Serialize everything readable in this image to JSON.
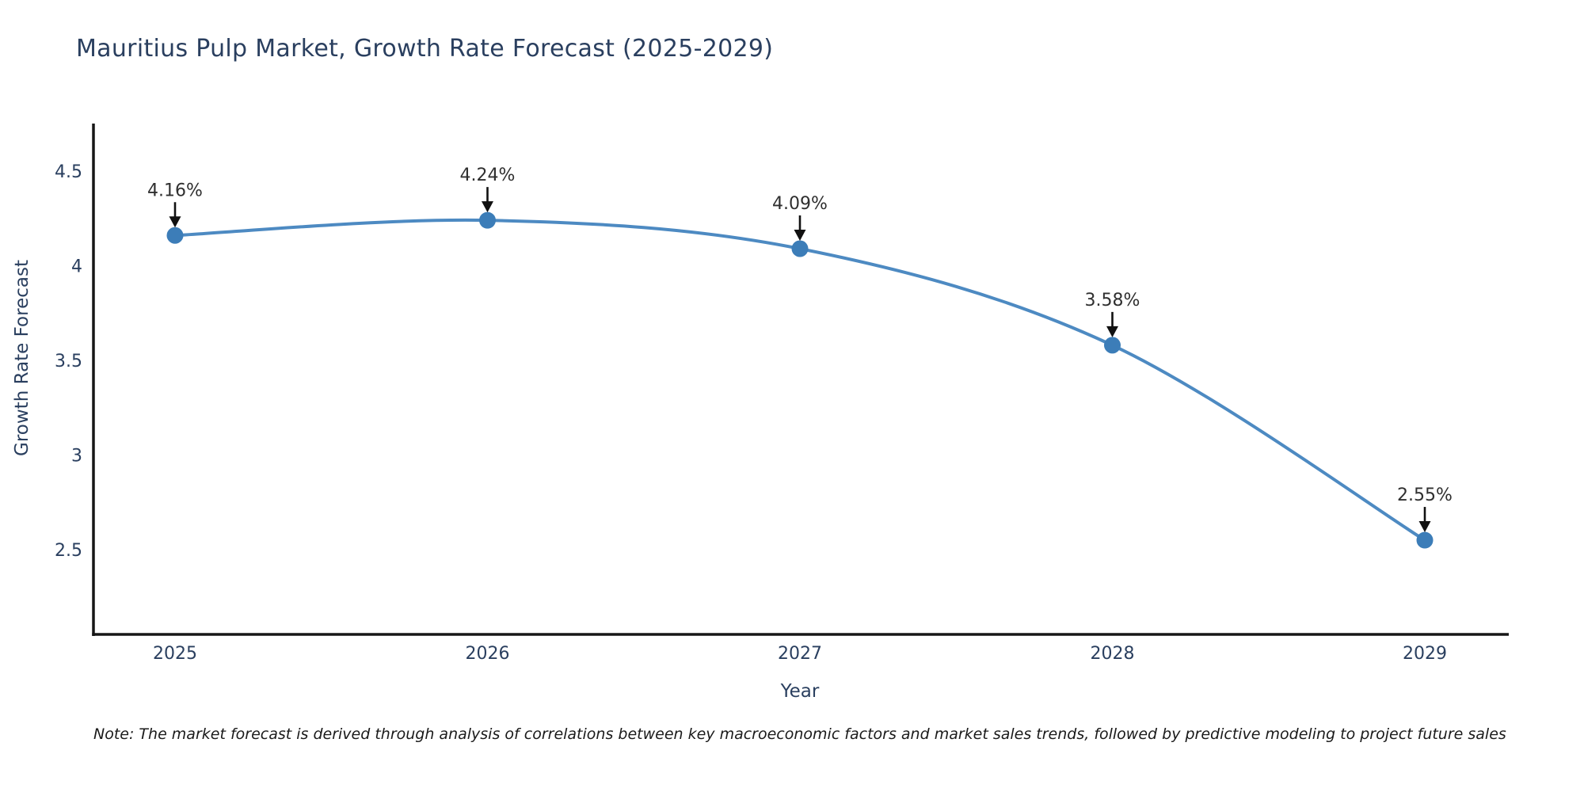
{
  "title": "Mauritius Pulp Market, Growth Rate Forecast (2025-2029)",
  "note": "Note: The market forecast is derived through analysis of correlations between key macroeconomic factors and market sales trends, followed by predictive modeling to project future sales",
  "chart_data": {
    "type": "line",
    "title": "Mauritius Pulp Market, Growth Rate Forecast (2025-2029)",
    "xlabel": "Year",
    "ylabel": "Growth Rate Forecast",
    "x": [
      2025,
      2026,
      2027,
      2028,
      2029
    ],
    "series": [
      {
        "name": "Growth Rate Forecast",
        "values": [
          4.16,
          4.24,
          4.09,
          3.58,
          2.55
        ]
      }
    ],
    "point_labels": [
      "4.16%",
      "4.24%",
      "4.09%",
      "3.58%",
      "2.55%"
    ],
    "xticks": [
      "2025",
      "2026",
      "2027",
      "2028",
      "2029"
    ],
    "yticks": [
      2.5,
      3,
      3.5,
      4,
      4.5
    ],
    "ytick_labels": [
      "2.5",
      "3",
      "3.5",
      "4",
      "4.5"
    ],
    "ylim": [
      2.04,
      4.74
    ],
    "line_shape": "spline",
    "grid": false,
    "legend": "none",
    "colors": {
      "line": "#4d8ac2",
      "marker": "#3c7db8",
      "axis": "#161616",
      "axis_text": "#2a3f5f",
      "annotation_text": "#2f2f2f",
      "arrow": "#111111",
      "background": "#ffffff"
    }
  }
}
